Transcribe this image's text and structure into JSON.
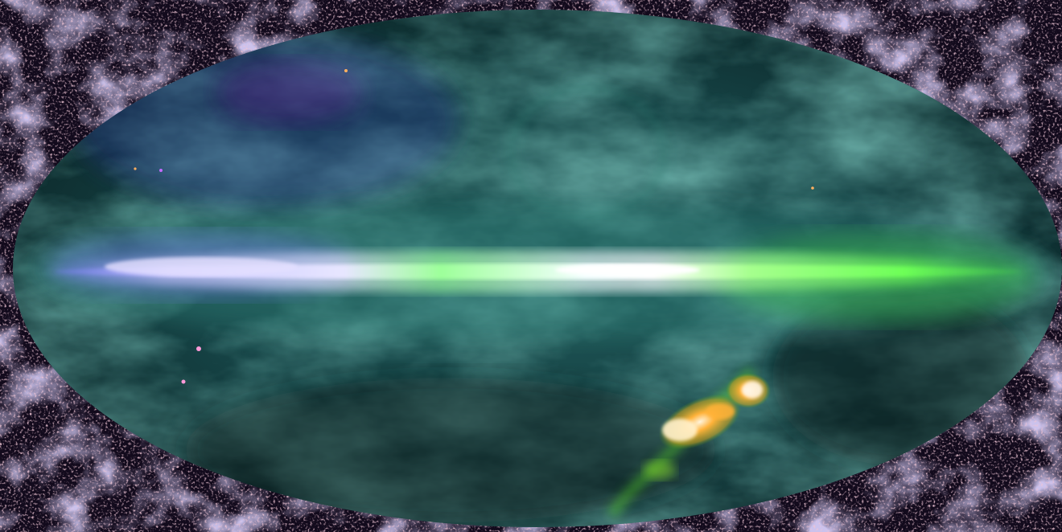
{
  "scene": {
    "subject": "all-sky-mollweide-map",
    "colors": {
      "background_deep": "#120a1c",
      "background_web_lavender": "#9a8cd6",
      "background_web_pink": "#d98a9a",
      "sky_teal": "#1f5a5a",
      "sky_dark": "#0b2426",
      "sky_blue": "#2a3f8a",
      "plane_white": "#f2f6ff",
      "plane_lavender": "#b8b4ff",
      "plane_green": "#6cff5a",
      "cloud_orange": "#ffa832",
      "cloud_core": "#fff0d0"
    },
    "icons": [
      "sky-ellipse",
      "galactic-plane",
      "bright-cloud-complex",
      "cosmic-web-background"
    ]
  }
}
